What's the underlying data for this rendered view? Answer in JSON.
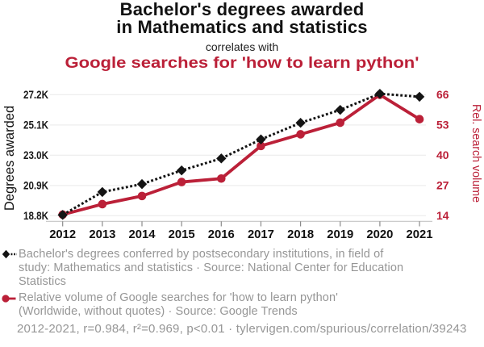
{
  "header": {
    "title": "Bachelor's degrees awarded\nin Mathematics and statistics",
    "subtitle": "correlates with",
    "title2": "Google searches for 'how to learn python'"
  },
  "colors": {
    "accent_red": "#bb2038",
    "series_black": "#141414",
    "grid": "#eeeeee",
    "axis_line": "#c4c4c4",
    "tick_mark": "#8a8a8a",
    "legend_gray": "#969696"
  },
  "chart_data": {
    "type": "line",
    "x": [
      2012,
      2013,
      2014,
      2015,
      2016,
      2017,
      2018,
      2019,
      2020,
      2021
    ],
    "x_tick_labels": [
      "2012",
      "2013",
      "2014",
      "2015",
      "2016",
      "2017",
      "2018",
      "2019",
      "2020",
      "2021"
    ],
    "series": [
      {
        "name": "bachelors-degrees-math-stats",
        "axis": "left",
        "style": "dashed",
        "marker": "diamond",
        "values": [
          18860,
          20450,
          21000,
          21950,
          22780,
          24100,
          25250,
          26150,
          27270,
          27060
        ]
      },
      {
        "name": "google-searches-how-to-learn-python",
        "axis": "right",
        "style": "solid",
        "marker": "circle",
        "values": [
          14.5,
          19,
          22.5,
          28.5,
          30,
          44,
          49,
          54,
          66,
          55.5
        ]
      }
    ],
    "left_axis": {
      "label": "Degrees awarded",
      "tick_labels": [
        "18.8K",
        "20.9K",
        "23.0K",
        "25.1K",
        "27.2K"
      ],
      "tick_values": [
        18800,
        20900,
        23000,
        25100,
        27200
      ]
    },
    "right_axis": {
      "label": "Rel. search volume",
      "tick_labels": [
        "14",
        "27",
        "40",
        "53",
        "66"
      ],
      "tick_values": [
        14,
        27,
        40,
        53,
        66
      ]
    }
  },
  "legend": {
    "items": [
      {
        "marker": "diamond-dashed",
        "text": "Bachelor's degrees conferred by postsecondary institutions, in field of\nstudy: Mathematics and statistics · Source: National Center for Education\nStatistics"
      },
      {
        "marker": "circle-solid",
        "text": "Relative volume of Google searches for 'how to learn python'\n(Worldwide, without quotes) · Source: Google Trends"
      }
    ],
    "footer": "2012-2021, r=0.984, r²=0.969, p<0.01 · tylervigen.com/spurious/correlation/39243"
  }
}
